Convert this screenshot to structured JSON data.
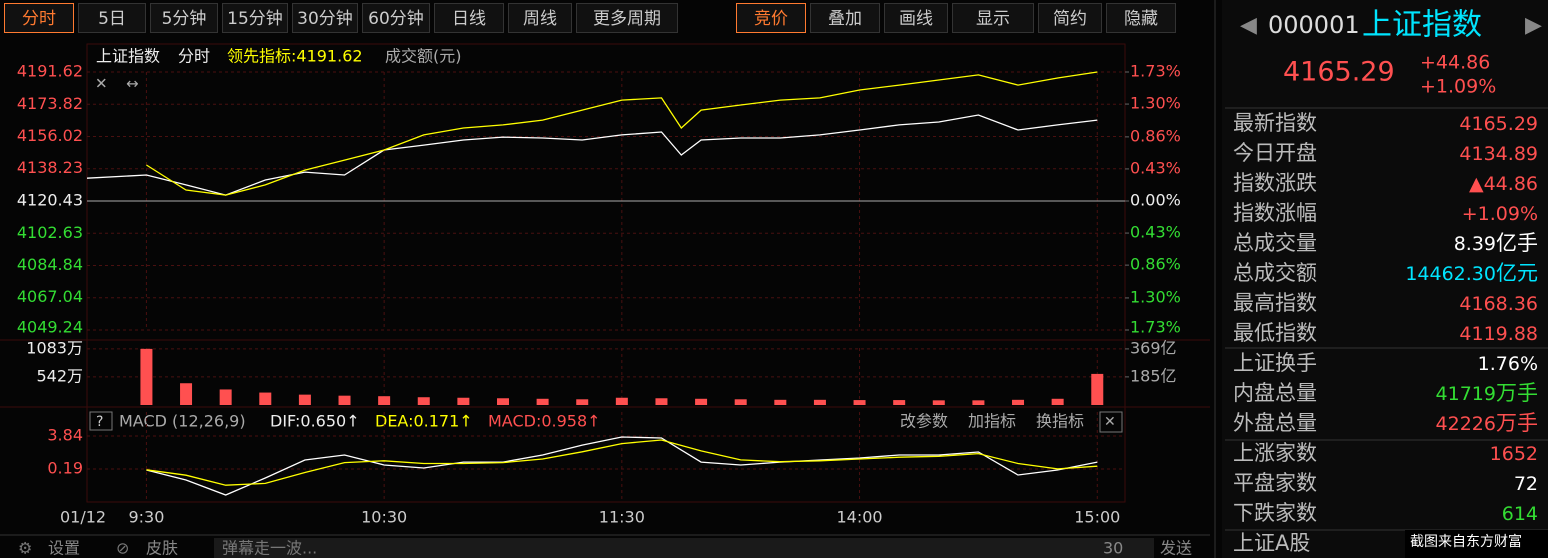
{
  "toolbar": {
    "periods": [
      "分时",
      "5日",
      "5分钟",
      "15分钟",
      "30分钟",
      "60分钟",
      "日线",
      "周线",
      "更多周期"
    ],
    "tools": [
      "竞价",
      "叠加",
      "画线",
      "显示",
      "简约",
      "隐藏"
    ]
  },
  "legend": {
    "name": "上证指数",
    "mode": "分时",
    "lead": "领先指标:4191.62",
    "amount": "成交额(元)"
  },
  "date_label": "01/12",
  "chart_data": [
    {
      "type": "line",
      "x": [
        -15,
        0,
        10,
        20,
        30,
        40,
        50,
        60,
        70,
        80,
        90,
        100,
        110,
        120,
        130,
        135,
        140,
        150,
        160,
        170,
        180,
        190,
        200,
        210,
        220,
        230,
        240
      ],
      "xlim": [
        -15,
        247
      ],
      "xticks": [
        {
          "value": 0,
          "label": "9:30"
        },
        {
          "value": 60,
          "label": "10:30"
        },
        {
          "value": 120,
          "label": "11:30"
        },
        {
          "value": 180,
          "label": "14:00"
        },
        {
          "value": 240,
          "label": "15:00"
        }
      ],
      "ylim": [
        4049.24,
        4191.62
      ],
      "yticks": [
        4191.62,
        4173.82,
        4156.02,
        4138.23,
        4120.43,
        4102.63,
        4084.84,
        4067.04,
        4049.24
      ],
      "y2lim": [
        -1.73,
        1.73
      ],
      "y2ticks": [
        {
          "value": 1.73,
          "label": "1.73%"
        },
        {
          "value": 1.3,
          "label": "1.30%"
        },
        {
          "value": 0.86,
          "label": "0.86%"
        },
        {
          "value": 0.43,
          "label": "0.43%"
        },
        {
          "value": 0,
          "label": "0.00%"
        },
        {
          "value": -0.43,
          "label": "0.43%"
        },
        {
          "value": -0.86,
          "label": "0.86%"
        },
        {
          "value": -1.3,
          "label": "1.30%"
        },
        {
          "value": -1.73,
          "label": "1.73%"
        }
      ],
      "series": [
        {
          "color": "#ffffff",
          "values": [
            4133,
            4134.8,
            4129.3,
            4123.7,
            4132,
            4136.4,
            4134.8,
            4148.6,
            4151.3,
            4154.1,
            4155.7,
            4155.2,
            4154.1,
            4156.9,
            4158.5,
            4145.8,
            4154.1,
            4155.2,
            4155.2,
            4156.9,
            4159.6,
            4162.4,
            4164,
            4167.9,
            4159.6,
            4162.4,
            4165.1
          ]
        },
        {
          "color": "#ffff00",
          "values": [
            null,
            4140.3,
            4126.5,
            4123.7,
            4129.3,
            4137.5,
            4143,
            4148.6,
            4156.9,
            4160.7,
            4162.4,
            4165.1,
            4170.6,
            4176.1,
            4177.3,
            4160.7,
            4170.6,
            4173.4,
            4176.1,
            4177.3,
            4181.7,
            4184.4,
            4187.2,
            4190,
            4184.4,
            4188.3,
            4191.6
          ]
        }
      ]
    },
    {
      "type": "bar",
      "x": [
        0,
        10,
        20,
        30,
        40,
        50,
        60,
        70,
        80,
        90,
        100,
        110,
        120,
        130,
        140,
        150,
        160,
        170,
        180,
        190,
        200,
        210,
        220,
        230,
        240
      ],
      "xlim": [
        -15,
        247
      ],
      "ylim": [
        0,
        1100
      ],
      "yticks": [
        {
          "value": 1083,
          "label": "1083万"
        },
        {
          "value": 542,
          "label": "542万"
        }
      ],
      "y2lim": [
        0,
        375
      ],
      "y2ticks": [
        {
          "value": 369,
          "label": "369亿"
        },
        {
          "value": 185,
          "label": "185亿"
        }
      ],
      "color": "#ff5050",
      "values": [
        1083,
        420,
        300,
        240,
        200,
        180,
        170,
        150,
        140,
        130,
        120,
        110,
        140,
        130,
        120,
        110,
        100,
        100,
        95,
        95,
        90,
        90,
        100,
        120,
        600
      ]
    },
    {
      "type": "line",
      "x": [
        0,
        10,
        20,
        30,
        40,
        50,
        60,
        70,
        80,
        90,
        100,
        110,
        120,
        130,
        140,
        150,
        160,
        170,
        180,
        190,
        200,
        210,
        220,
        230,
        240
      ],
      "xlim": [
        -15,
        247
      ],
      "ylim": [
        -3.24,
        6.5
      ],
      "yticks": [
        3.84,
        0.19
      ],
      "series": [
        {
          "color": "#ffffff",
          "values": [
            0.08,
            -1.03,
            -2.69,
            -0.81,
            1.19,
            1.74,
            0.63,
            0.3,
            0.96,
            0.96,
            1.74,
            2.84,
            3.73,
            3.62,
            0.96,
            0.63,
            0.96,
            1.19,
            1.41,
            1.74,
            1.74,
            2.07,
            -0.47,
            0.08,
            0.96
          ]
        },
        {
          "color": "#ffff00",
          "values": [
            0.1,
            -0.5,
            -1.6,
            -1.4,
            -0.2,
            0.9,
            1.1,
            0.8,
            0.8,
            0.9,
            1.3,
            2.1,
            3.0,
            3.4,
            2.2,
            1.2,
            1.0,
            1.1,
            1.3,
            1.5,
            1.6,
            1.9,
            0.8,
            0.2,
            0.5
          ]
        }
      ]
    }
  ],
  "macd_header": {
    "name": "MACD (12,26,9)",
    "dif": "DIF:0.650↑",
    "dea": "DEA:0.171↑",
    "macd": "MACD:0.958↑",
    "actions": [
      "改参数",
      "加指标",
      "换指标"
    ]
  },
  "quote": {
    "code": "000001",
    "name": "上证指数",
    "price": "4165.29",
    "change": "+44.86",
    "pct": "+1.09%",
    "rows": [
      {
        "label": "最新指数",
        "value": "4165.29",
        "color": "#ff5050"
      },
      {
        "label": "今日开盘",
        "value": "4134.89",
        "color": "#ff5050"
      },
      {
        "label": "指数涨跌",
        "value": "▲44.86",
        "color": "#ff5050"
      },
      {
        "label": "指数涨幅",
        "value": "+1.09%",
        "color": "#ff5050"
      },
      {
        "label": "总成交量",
        "value": "8.39",
        "unit": "亿手",
        "color": "#ffffff"
      },
      {
        "label": "总成交额",
        "value": "14462.30",
        "unit": "亿元",
        "color": "#00e5ff"
      },
      {
        "label": "最高指数",
        "value": "4168.36",
        "color": "#ff5050"
      },
      {
        "label": "最低指数",
        "value": "4119.88",
        "color": "#ff5050"
      },
      {
        "label": "上证换手",
        "value": "1.76%",
        "color": "#ffffff"
      },
      {
        "label": "内盘总量",
        "value": "41719",
        "unit": "万手",
        "color": "#33dd33"
      },
      {
        "label": "外盘总量",
        "value": "42226",
        "unit": "万手",
        "color": "#ff5050"
      },
      {
        "label": "上涨家数",
        "value": "1652",
        "color": "#ff5050"
      },
      {
        "label": "平盘家数",
        "value": "72",
        "color": "#ffffff"
      },
      {
        "label": "下跌家数",
        "value": "614",
        "color": "#33dd33"
      },
      {
        "label": "上证A股"
      }
    ]
  },
  "footer": {
    "settings": "设置",
    "skin": "皮肤",
    "danmaku": "弹幕走一波...",
    "count": "30",
    "send": "发送",
    "watermark": "截图来自东方财富"
  }
}
